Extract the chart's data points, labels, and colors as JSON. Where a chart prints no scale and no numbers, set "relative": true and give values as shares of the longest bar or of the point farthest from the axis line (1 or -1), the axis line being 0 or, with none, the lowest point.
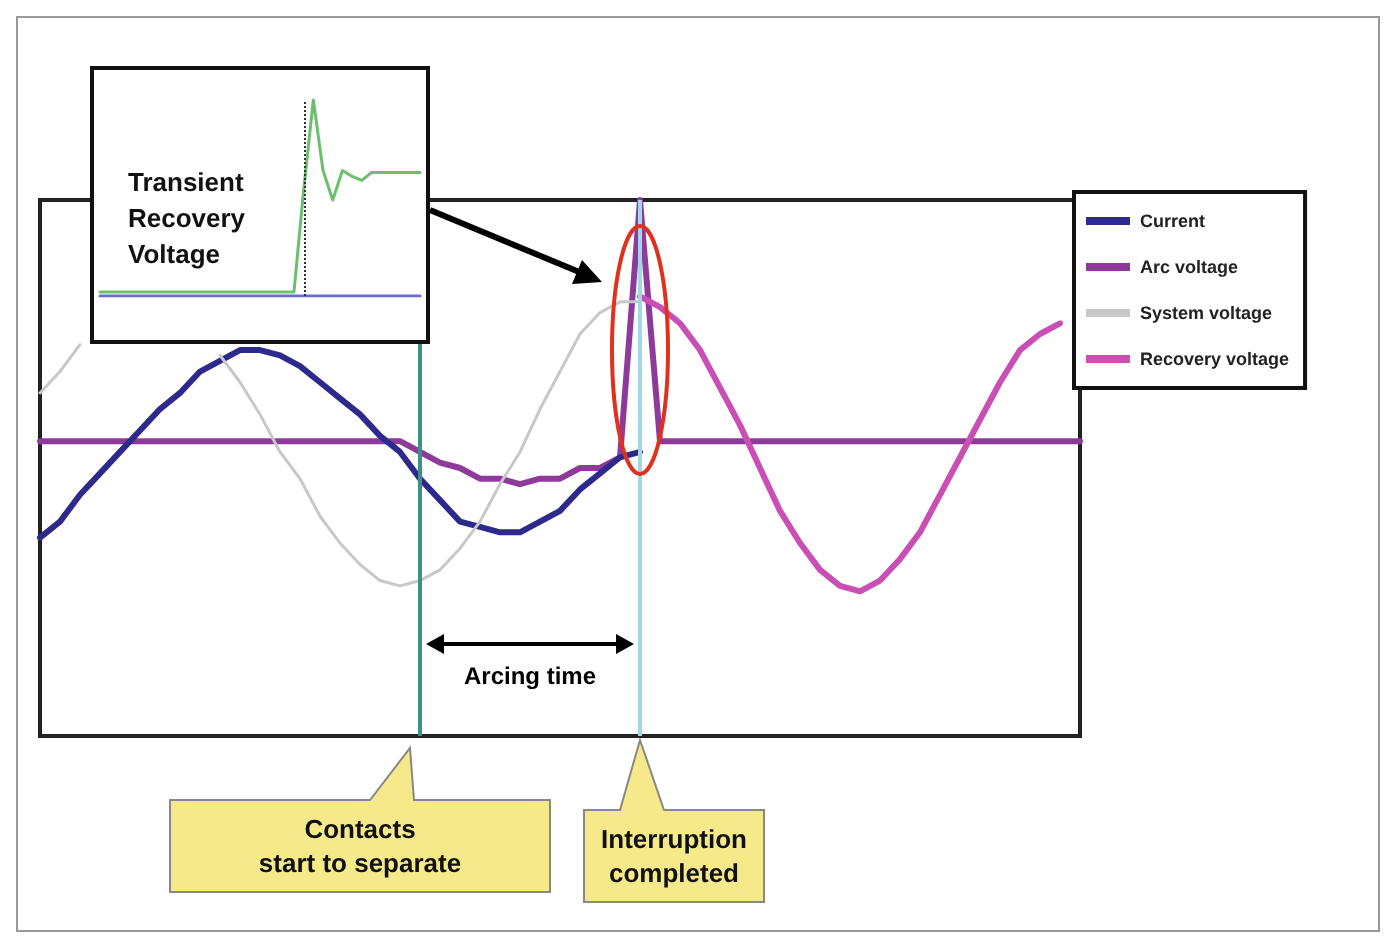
{
  "chart_data": [
    {
      "type": "line",
      "relative": true,
      "grid": false,
      "legend": "top right",
      "categories": [
        null,
        null,
        null,
        null,
        null,
        null,
        null,
        null,
        null,
        null,
        null,
        null,
        null,
        null,
        null,
        null,
        null,
        null,
        null,
        null,
        null,
        null,
        null,
        null,
        null,
        null,
        null,
        null,
        null,
        null,
        null,
        null,
        null,
        null,
        null,
        null,
        null,
        null,
        null,
        null,
        null,
        null,
        null,
        null,
        null,
        null,
        null,
        null,
        null,
        null,
        null,
        null,
        null
      ],
      "series": [
        {
          "name": "Current",
          "color": "#2e2a8c",
          "values": [
            0.37,
            0.4,
            0.45,
            0.49,
            0.53,
            0.57,
            0.61,
            0.64,
            0.68,
            0.7,
            0.72,
            0.72,
            0.71,
            0.69,
            0.66,
            0.63,
            0.6,
            0.56,
            0.53,
            0.48,
            0.44,
            0.4,
            0.39,
            0.38,
            0.38,
            0.4,
            0.42,
            0.46,
            0.49,
            0.52,
            0.53,
            null,
            null,
            null,
            null,
            null,
            null,
            null,
            null,
            null,
            null,
            null,
            null,
            null,
            null,
            null,
            null,
            null,
            null,
            null,
            null,
            null,
            null
          ]
        },
        {
          "name": "Arc voltage",
          "color": "#8e3a9a",
          "values": [
            0.55,
            0.55,
            0.55,
            0.55,
            0.55,
            0.55,
            0.55,
            0.55,
            0.55,
            0.55,
            0.55,
            0.55,
            0.55,
            0.55,
            0.55,
            0.55,
            0.55,
            0.55,
            0.55,
            0.53,
            0.51,
            0.5,
            0.48,
            0.48,
            0.47,
            0.48,
            0.48,
            0.5,
            0.5,
            0.52,
            1,
            0.55,
            0.55,
            0.55,
            0.55,
            0.55,
            0.55,
            0.55,
            0.55,
            0.55,
            0.55,
            0.55,
            0.55,
            0.55,
            0.55,
            0.55,
            0.55,
            0.55,
            0.55,
            0.55,
            0.55,
            0.55,
            0.55
          ]
        },
        {
          "name": "System voltage",
          "color": "#c8c8c8",
          "values": [
            0.64,
            0.68,
            0.73,
            null,
            null,
            null,
            null,
            null,
            null,
            0.71,
            0.66,
            0.6,
            0.53,
            0.48,
            0.41,
            0.36,
            0.32,
            0.29,
            0.28,
            0.29,
            0.31,
            0.35,
            0.4,
            0.47,
            0.53,
            0.61,
            0.68,
            0.75,
            0.79,
            0.81,
            0.81,
            null,
            null,
            null,
            null,
            null,
            null,
            null,
            null,
            null,
            null,
            null,
            null,
            null,
            null,
            null,
            null,
            null,
            null,
            null,
            null,
            null,
            null
          ]
        },
        {
          "name": "Recovery voltage",
          "color": "#c94fb4",
          "values": [
            null,
            null,
            null,
            null,
            null,
            null,
            null,
            null,
            null,
            null,
            null,
            null,
            null,
            null,
            null,
            null,
            null,
            null,
            null,
            null,
            null,
            null,
            null,
            null,
            null,
            null,
            null,
            null,
            null,
            null,
            0.82,
            0.8,
            0.77,
            0.72,
            0.65,
            0.58,
            0.5,
            0.42,
            0.36,
            0.31,
            0.28,
            0.27,
            0.29,
            0.33,
            0.38,
            0.45,
            0.52,
            0.59,
            0.66,
            0.72,
            0.75,
            0.77,
            null
          ]
        }
      ],
      "annotations": [
        "Arcing time",
        "Contacts\nstart to separate",
        "Interruption\ncompleted"
      ]
    },
    {
      "type": "line",
      "relative": true,
      "grid": false,
      "legend": false,
      "title": "Transient Recovery Voltage",
      "categories": [
        null,
        null,
        null,
        null,
        null,
        null,
        null,
        null,
        null,
        null,
        null,
        null,
        null,
        null,
        null,
        null,
        null,
        null,
        null,
        null,
        null,
        null,
        null,
        null,
        null,
        null,
        null,
        null,
        null,
        null,
        null,
        null,
        null,
        null
      ],
      "series": [
        {
          "color": "#6cbf6c",
          "values": [
            0.02,
            0.02,
            0.02,
            0.02,
            0.02,
            0.02,
            0.02,
            0.02,
            0.02,
            0.02,
            0.02,
            0.02,
            0.02,
            0.02,
            0.02,
            0.02,
            0.02,
            0.02,
            0.02,
            0.02,
            0.02,
            0.54,
            1,
            0.64,
            0.49,
            0.64,
            0.61,
            0.59,
            0.63,
            0.63,
            0.63,
            0.63,
            0.63,
            0.63
          ]
        },
        {
          "color": "#6a6ad0",
          "values": [
            0,
            0,
            0,
            0,
            0,
            0,
            0,
            0,
            0,
            0,
            0,
            0,
            0,
            0,
            0,
            0,
            0,
            0,
            0,
            0,
            0,
            0,
            0,
            0,
            0,
            0,
            0,
            0,
            0,
            0,
            0,
            0,
            0,
            0
          ]
        }
      ]
    }
  ]
}
